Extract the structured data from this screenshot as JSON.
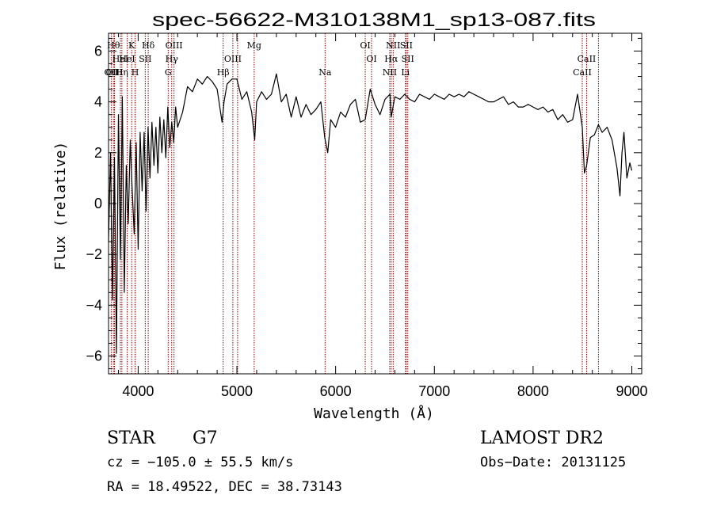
{
  "chart_data": {
    "type": "line",
    "title": "spec-56622-M310138M1_sp13-087.fits",
    "xlabel": "Wavelength (Å)",
    "ylabel": "Flux (relative)",
    "xlim": [
      3700,
      9100
    ],
    "ylim": [
      -6.7,
      6.7
    ],
    "xticks": [
      4000,
      5000,
      6000,
      7000,
      8000,
      9000
    ],
    "yticks": [
      -6,
      -4,
      -2,
      0,
      2,
      4,
      6
    ],
    "grid": false,
    "series": [
      {
        "x": [
          3700,
          3720,
          3740,
          3760,
          3780,
          3800,
          3820,
          3840,
          3860,
          3880,
          3900,
          3920,
          3940,
          3960,
          3980,
          4000,
          4020,
          4040,
          4060,
          4080,
          4100,
          4120,
          4140,
          4160,
          4180,
          4200,
          4220,
          4240,
          4260,
          4280,
          4300,
          4320,
          4340,
          4360,
          4380,
          4400,
          4450,
          4500,
          4550,
          4600,
          4650,
          4700,
          4750,
          4800,
          4850,
          4870,
          4900,
          4950,
          5000,
          5050,
          5100,
          5150,
          5180,
          5200,
          5250,
          5300,
          5350,
          5400,
          5450,
          5500,
          5550,
          5600,
          5650,
          5700,
          5750,
          5800,
          5850,
          5890,
          5920,
          5950,
          6000,
          6050,
          6100,
          6150,
          6200,
          6250,
          6300,
          6350,
          6400,
          6450,
          6500,
          6550,
          6563,
          6600,
          6650,
          6700,
          6750,
          6800,
          6850,
          6900,
          6950,
          7000,
          7050,
          7100,
          7150,
          7200,
          7250,
          7300,
          7350,
          7400,
          7450,
          7500,
          7550,
          7600,
          7650,
          7700,
          7750,
          7800,
          7850,
          7900,
          7950,
          8000,
          8050,
          8100,
          8150,
          8200,
          8250,
          8300,
          8350,
          8400,
          8450,
          8498,
          8520,
          8542,
          8580,
          8620,
          8662,
          8700,
          8750,
          8800,
          8850,
          8880,
          8900,
          8920,
          8950,
          8980,
          9000
        ],
        "y": [
          -1.5,
          2.0,
          -3.8,
          1.8,
          -5.9,
          3.5,
          -2.2,
          4.2,
          -3.5,
          1.5,
          -0.8,
          2.5,
          0.5,
          -1.2,
          2.4,
          -1.8,
          2.8,
          0.5,
          2.8,
          -0.3,
          3.0,
          1.0,
          3.2,
          1.5,
          3.0,
          1.2,
          3.4,
          2.0,
          3.3,
          1.8,
          3.8,
          2.2,
          3.2,
          2.4,
          3.8,
          3.0,
          3.6,
          4.6,
          4.4,
          4.9,
          4.7,
          5.0,
          4.8,
          4.5,
          3.2,
          4.0,
          4.7,
          4.9,
          4.9,
          4.1,
          4.4,
          3.6,
          2.5,
          4.0,
          4.4,
          4.1,
          4.3,
          5.1,
          4.0,
          4.3,
          3.4,
          4.2,
          3.4,
          3.9,
          3.5,
          3.7,
          4.0,
          2.6,
          2.0,
          3.3,
          3.0,
          3.6,
          3.4,
          3.9,
          4.1,
          3.2,
          3.3,
          4.5,
          3.9,
          3.5,
          4.1,
          4.3,
          3.4,
          4.2,
          4.1,
          4.3,
          4.1,
          4.0,
          4.3,
          4.2,
          4.1,
          4.3,
          4.2,
          4.1,
          4.3,
          4.2,
          4.3,
          4.2,
          4.4,
          4.3,
          4.2,
          4.1,
          4.0,
          4.0,
          4.1,
          4.2,
          3.9,
          4.0,
          3.8,
          3.8,
          3.9,
          3.8,
          3.7,
          3.8,
          3.6,
          3.7,
          3.3,
          3.5,
          3.2,
          3.3,
          4.3,
          3.0,
          1.2,
          1.5,
          2.6,
          2.7,
          3.1,
          2.8,
          3.0,
          2.5,
          1.4,
          0.3,
          2.0,
          2.8,
          1.0,
          1.6,
          1.3
        ]
      }
    ],
    "lines": [
      {
        "x": 3727,
        "label": "OII",
        "row": 2
      },
      {
        "x": 3750,
        "label": "Hθ",
        "row": 0
      },
      {
        "x": 3760,
        "label": "OIII",
        "row": 2
      },
      {
        "x": 3820,
        "label": "HeI",
        "row": 1
      },
      {
        "x": 3835,
        "label": "Hη",
        "row": 2
      },
      {
        "x": 3889,
        "label": "HeI",
        "row": 1
      },
      {
        "x": 3934,
        "label": "K",
        "row": 0
      },
      {
        "x": 3969,
        "label": "H",
        "row": 2
      },
      {
        "x": 4072,
        "label": "SII",
        "row": 1
      },
      {
        "x": 4102,
        "label": "Hδ",
        "row": 0
      },
      {
        "x": 4304,
        "label": "G",
        "row": 2
      },
      {
        "x": 4340,
        "label": "Hγ",
        "row": 1
      },
      {
        "x": 4363,
        "label": "OIII",
        "row": 0
      },
      {
        "x": 4861,
        "label": "Hβ",
        "row": 2
      },
      {
        "x": 4959,
        "label": "OIII",
        "row": 1
      },
      {
        "x": 5007,
        "label": "",
        "row": 1
      },
      {
        "x": 5175,
        "label": "Mg",
        "row": 0
      },
      {
        "x": 5893,
        "label": "Na",
        "row": 2
      },
      {
        "x": 6300,
        "label": "OI",
        "row": 0
      },
      {
        "x": 6364,
        "label": "OI",
        "row": 1
      },
      {
        "x": 6548,
        "label": "NII",
        "row": 2
      },
      {
        "x": 6563,
        "label": "Hα",
        "row": 1
      },
      {
        "x": 6583,
        "label": "NII",
        "row": 0
      },
      {
        "x": 6707,
        "label": "Li",
        "row": 2
      },
      {
        "x": 6716,
        "label": "SII",
        "row": 0
      },
      {
        "x": 6731,
        "label": "SII",
        "row": 1
      },
      {
        "x": 8498,
        "label": "CaII",
        "row": 2
      },
      {
        "x": 8542,
        "label": "CaII",
        "row": 1
      },
      {
        "x": 8662,
        "label": "",
        "row": 1
      }
    ],
    "line_color": "#000000",
    "marker_color": "#8b0000"
  },
  "info": {
    "object_class": "STAR",
    "subclass": "G7",
    "survey": "LAMOST DR2",
    "cz": "cz = −105.0 ± 55.5 km/s",
    "obs_date": "Obs−Date: 20131125",
    "coords": "RA =  18.49522, DEC =  38.73143"
  }
}
